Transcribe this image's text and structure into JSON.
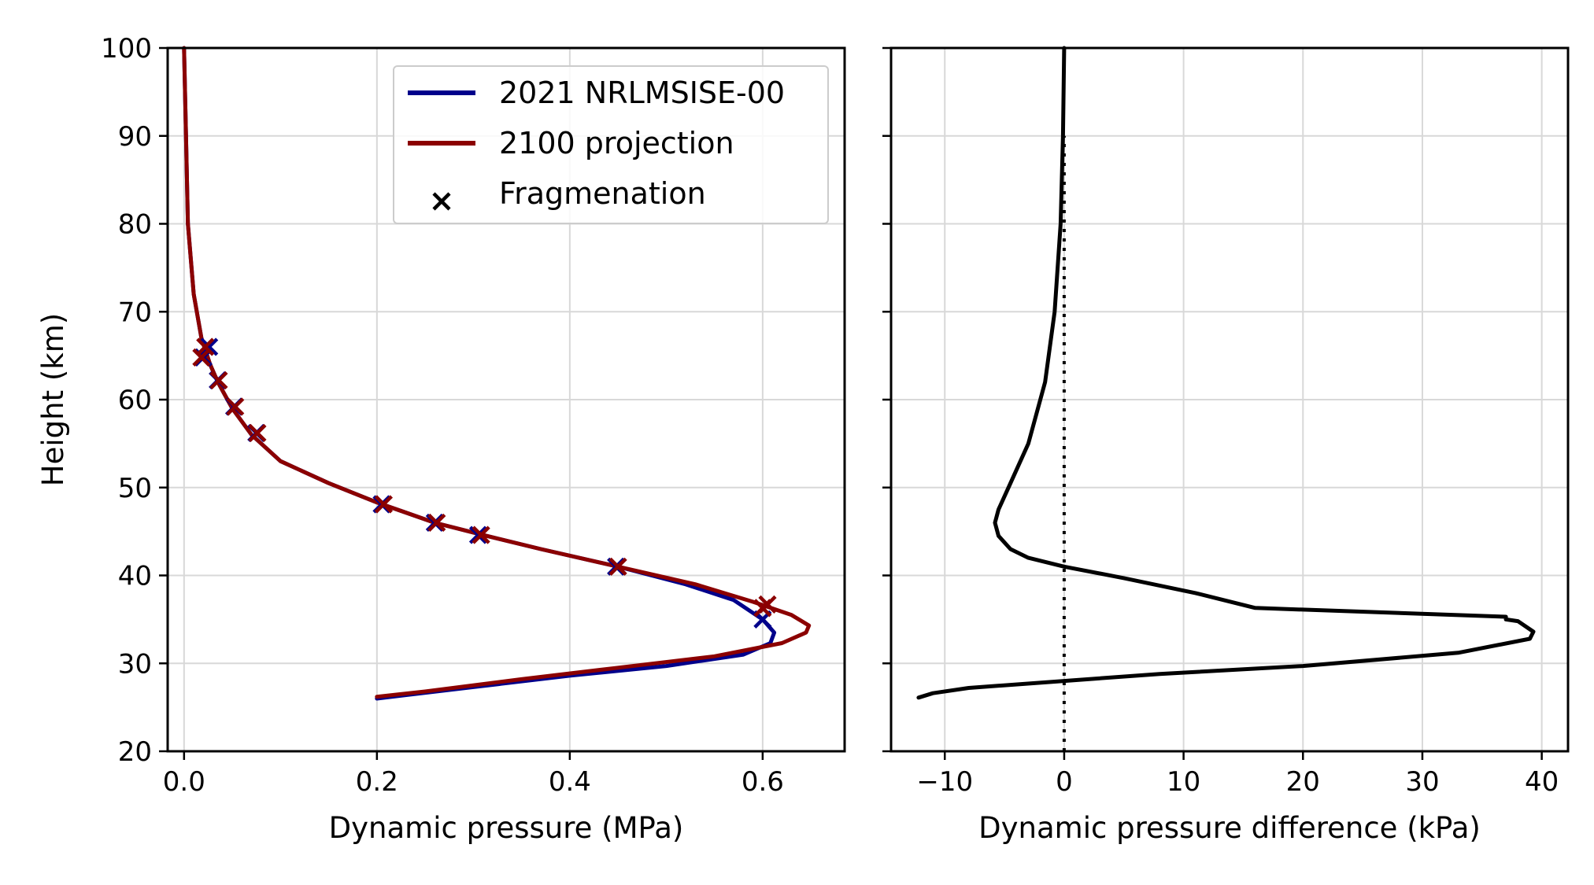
{
  "chart_data": [
    {
      "type": "line",
      "panel": "left",
      "xlabel": "Dynamic pressure (MPa)",
      "ylabel": "Height (km)",
      "xlim": [
        -0.017,
        0.685
      ],
      "ylim": [
        20,
        100
      ],
      "xticks": [
        0.0,
        0.2,
        0.4,
        0.6
      ],
      "xtick_labels": [
        "0.0",
        "0.2",
        "0.4",
        "0.6"
      ],
      "yticks": [
        20,
        30,
        40,
        50,
        60,
        70,
        80,
        90,
        100
      ],
      "ytick_labels": [
        "20",
        "30",
        "40",
        "50",
        "60",
        "70",
        "80",
        "90",
        "100"
      ],
      "grid": true,
      "legend_position": "top-right",
      "series": [
        {
          "name": "2021 NRLMSISE-00",
          "color": "#00008b",
          "points": [
            [
              0.0,
              100
            ],
            [
              0.002,
              90
            ],
            [
              0.004,
              80
            ],
            [
              0.01,
              72
            ],
            [
              0.018,
              67
            ],
            [
              0.027,
              64
            ],
            [
              0.035,
              62
            ],
            [
              0.05,
              59
            ],
            [
              0.07,
              56
            ],
            [
              0.1,
              53
            ],
            [
              0.15,
              50.5
            ],
            [
              0.2,
              48.3
            ],
            [
              0.26,
              46
            ],
            [
              0.31,
              44.6
            ],
            [
              0.37,
              43
            ],
            [
              0.45,
              41
            ],
            [
              0.52,
              39
            ],
            [
              0.57,
              37.2
            ],
            [
              0.6,
              35
            ],
            [
              0.612,
              33.5
            ],
            [
              0.608,
              32.3
            ],
            [
              0.58,
              31
            ],
            [
              0.5,
              29.7
            ],
            [
              0.4,
              28.6
            ],
            [
              0.3,
              27.3
            ],
            [
              0.2,
              26.0
            ]
          ],
          "fragmentation": [
            [
              0.026,
              66
            ],
            [
              0.02,
              64.8
            ],
            [
              0.035,
              62.2
            ],
            [
              0.052,
              59.2
            ],
            [
              0.075,
              56.2
            ],
            [
              0.205,
              48.1
            ],
            [
              0.26,
              46
            ],
            [
              0.305,
              44.6
            ],
            [
              0.448,
              41
            ],
            [
              0.6,
              35
            ]
          ]
        },
        {
          "name": "2100 projection",
          "color": "#8b0000",
          "points": [
            [
              0.0,
              100
            ],
            [
              0.002,
              90
            ],
            [
              0.004,
              80
            ],
            [
              0.01,
              72
            ],
            [
              0.018,
              67
            ],
            [
              0.027,
              64
            ],
            [
              0.035,
              62
            ],
            [
              0.05,
              59
            ],
            [
              0.07,
              56
            ],
            [
              0.1,
              53
            ],
            [
              0.15,
              50.5
            ],
            [
              0.2,
              48.3
            ],
            [
              0.26,
              46
            ],
            [
              0.31,
              44.6
            ],
            [
              0.37,
              43
            ],
            [
              0.45,
              41
            ],
            [
              0.53,
              39
            ],
            [
              0.59,
              37
            ],
            [
              0.63,
              35.5
            ],
            [
              0.648,
              34.3
            ],
            [
              0.645,
              33.5
            ],
            [
              0.62,
              32.3
            ],
            [
              0.55,
              30.8
            ],
            [
              0.45,
              29.5
            ],
            [
              0.35,
              28.2
            ],
            [
              0.25,
              26.8
            ],
            [
              0.2,
              26.2
            ]
          ],
          "fragmentation": [
            [
              0.022,
              66
            ],
            [
              0.018,
              64.8
            ],
            [
              0.036,
              62.2
            ],
            [
              0.053,
              59.2
            ],
            [
              0.076,
              56.2
            ],
            [
              0.207,
              48.1
            ],
            [
              0.262,
              46
            ],
            [
              0.308,
              44.6
            ],
            [
              0.45,
              41
            ],
            [
              0.6,
              36.3
            ],
            [
              0.605,
              36.7
            ]
          ]
        }
      ],
      "legend": [
        {
          "label": "2021 NRLMSISE-00",
          "kind": "line",
          "color": "#00008b"
        },
        {
          "label": "2100 projection",
          "kind": "line",
          "color": "#8b0000"
        },
        {
          "label": "Fragmenation",
          "kind": "marker-x",
          "color": "#000000"
        }
      ]
    },
    {
      "type": "line",
      "panel": "right",
      "xlabel": "Dynamic pressure difference (kPa)",
      "ylabel": "",
      "xlim": [
        -14.5,
        42.2
      ],
      "ylim": [
        20,
        100
      ],
      "xticks": [
        -10,
        0,
        10,
        20,
        30,
        40
      ],
      "xtick_labels": [
        "−10",
        "0",
        "10",
        "20",
        "30",
        "40"
      ],
      "yticks": [
        20,
        30,
        40,
        50,
        60,
        70,
        80,
        90,
        100
      ],
      "ytick_labels": [],
      "grid": true,
      "series": [
        {
          "name": "difference",
          "color": "#000000",
          "points": [
            [
              0.0,
              100
            ],
            [
              -0.1,
              90
            ],
            [
              -0.3,
              80
            ],
            [
              -0.8,
              70
            ],
            [
              -1.6,
              62
            ],
            [
              -3.0,
              55
            ],
            [
              -4.5,
              50.5
            ],
            [
              -5.5,
              47.5
            ],
            [
              -5.8,
              46
            ],
            [
              -5.5,
              44.5
            ],
            [
              -4.5,
              43
            ],
            [
              -3.0,
              42
            ],
            [
              0.0,
              41
            ],
            [
              5.0,
              39.7
            ],
            [
              11.0,
              38
            ],
            [
              16.0,
              36.3
            ],
            [
              37.0,
              35.3
            ],
            [
              37.0,
              35.0
            ],
            [
              38.0,
              34.8
            ],
            [
              39.3,
              33.6
            ],
            [
              39.0,
              32.8
            ],
            [
              33.0,
              31.2
            ],
            [
              20.0,
              29.7
            ],
            [
              8.0,
              28.8
            ],
            [
              0.0,
              28.0
            ],
            [
              -8.0,
              27.2
            ],
            [
              -11.0,
              26.6
            ],
            [
              -12.2,
              26.1
            ]
          ]
        },
        {
          "name": "zero-reference",
          "color": "#000000",
          "style": "dotted",
          "points": [
            [
              0,
              20
            ],
            [
              0,
              90
            ]
          ]
        }
      ]
    }
  ]
}
